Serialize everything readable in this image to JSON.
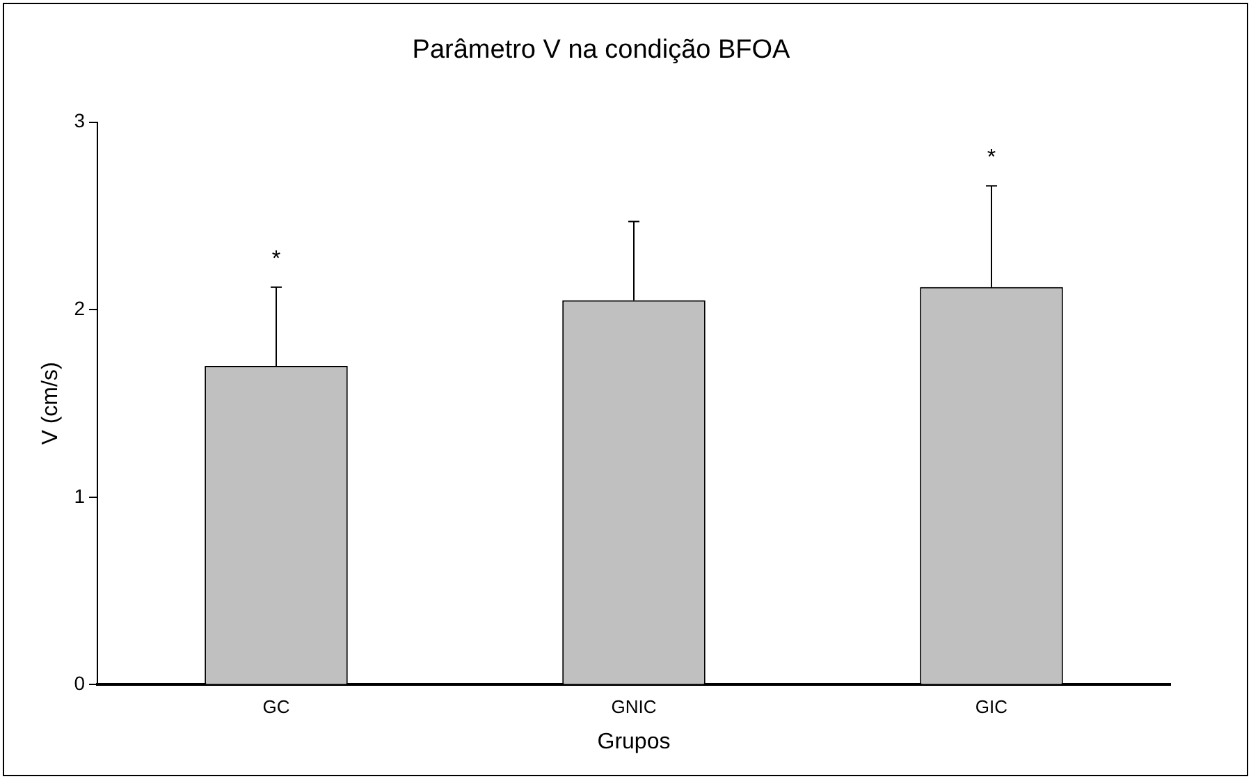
{
  "chart_data": {
    "type": "bar",
    "title": "Parâmetro V na condição BFOA",
    "xlabel": "Grupos",
    "ylabel": "V (cm/s)",
    "categories": [
      "GC",
      "GNIC",
      "GIC"
    ],
    "values": [
      1.7,
      2.05,
      2.12
    ],
    "errors": [
      [
        1.7,
        2.12
      ],
      [
        2.05,
        2.47
      ],
      [
        2.12,
        2.66
      ]
    ],
    "color": "#c0c0c0",
    "ylim": [
      0,
      3
    ],
    "yticks": [
      0,
      1,
      2,
      3
    ],
    "grid": false,
    "legend": false,
    "annotations": [
      "*",
      "*"
    ]
  }
}
